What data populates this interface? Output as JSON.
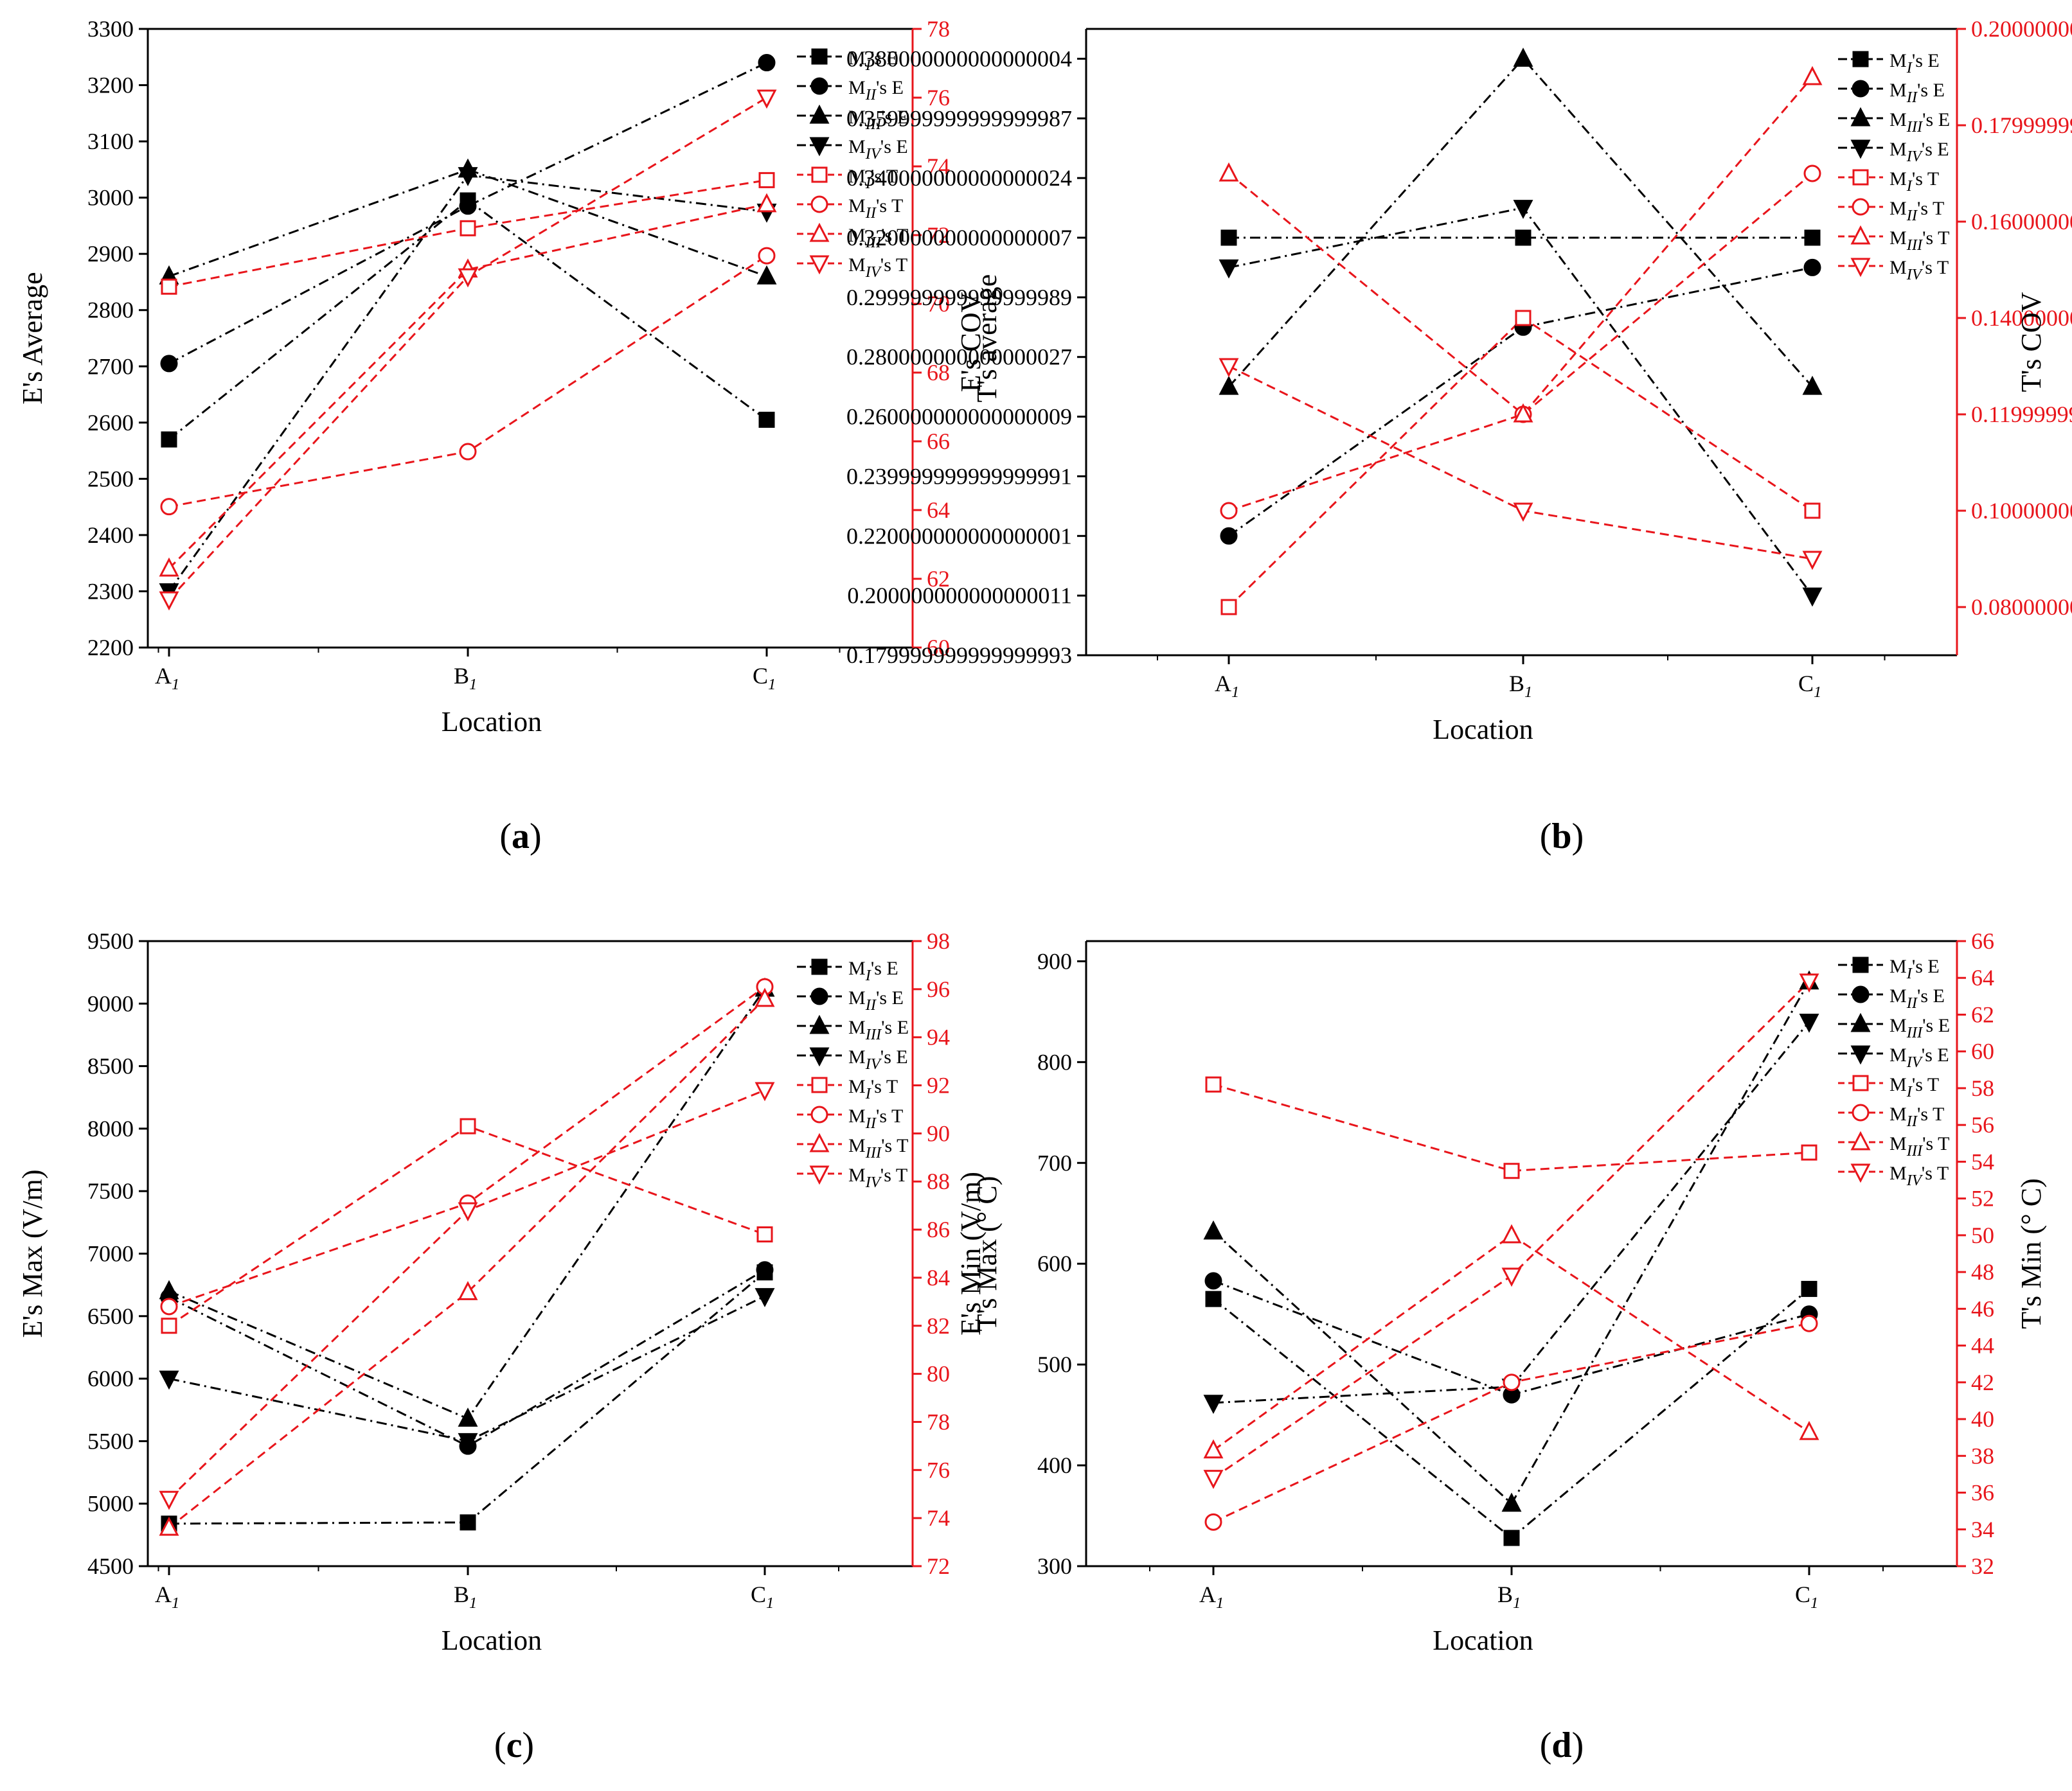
{
  "figure": {
    "colors": {
      "e_series": "#000000",
      "t_series": "#e8151b"
    },
    "legend_entries": [
      {
        "base": "M",
        "sub": "I",
        "suffix": "'s E"
      },
      {
        "base": "M",
        "sub": "II",
        "suffix": "'s E"
      },
      {
        "base": "M",
        "sub": "III",
        "suffix": "'s E"
      },
      {
        "base": "M",
        "sub": "IV",
        "suffix": "'s E"
      },
      {
        "base": "M",
        "sub": "I",
        "suffix": "'s T"
      },
      {
        "base": "M",
        "sub": "II",
        "suffix": "'s T"
      },
      {
        "base": "M",
        "sub": "III",
        "suffix": "'s T"
      },
      {
        "base": "M",
        "sub": "IV",
        "suffix": "'s T"
      }
    ],
    "categories": [
      {
        "base": "A",
        "sub": "1"
      },
      {
        "base": "B",
        "sub": "1"
      },
      {
        "base": "C",
        "sub": "1"
      }
    ]
  },
  "chart_data": [
    {
      "id": "a",
      "type": "line",
      "panel_label": "(a)",
      "xlabel": "Location",
      "ylabel_left": "E's Average",
      "ylabel_right": "T's average",
      "left_ylim": [
        2200,
        3300
      ],
      "left_ticks": [
        2200,
        2300,
        2400,
        2500,
        2600,
        2700,
        2800,
        2900,
        3000,
        3100,
        3200,
        3300
      ],
      "right_ylim": [
        60,
        78
      ],
      "right_ticks": [
        60,
        62,
        64,
        66,
        68,
        70,
        72,
        74,
        76,
        78
      ],
      "series_e": [
        {
          "name": "M_I's E",
          "values": [
            2570,
            2995,
            2605
          ]
        },
        {
          "name": "M_II's E",
          "values": [
            2705,
            2985,
            3240
          ]
        },
        {
          "name": "M_III's E",
          "values": [
            2860,
            3050,
            2860
          ]
        },
        {
          "name": "M_IV's E",
          "values": [
            2300,
            3040,
            2975
          ]
        }
      ],
      "series_t": [
        {
          "name": "M_I's T",
          "values": [
            70.5,
            72.2,
            73.6
          ]
        },
        {
          "name": "M_II's T",
          "values": [
            64.1,
            65.7,
            71.4
          ]
        },
        {
          "name": "M_III's T",
          "values": [
            62.3,
            71.0,
            72.9
          ]
        },
        {
          "name": "M_IV's T",
          "values": [
            61.4,
            70.8,
            76.0
          ]
        }
      ]
    },
    {
      "id": "b",
      "type": "line",
      "panel_label": "(b)",
      "xlabel": "Location",
      "ylabel_left": "E's COV",
      "ylabel_right": "T's COV",
      "left_ylim": [
        0.18,
        0.39
      ],
      "left_ticks": [
        0.18,
        0.2,
        0.22,
        0.24,
        0.26,
        0.28,
        0.3,
        0.32,
        0.34,
        0.36,
        0.38
      ],
      "right_ylim": [
        0.07,
        0.2
      ],
      "right_ticks": [
        0.08,
        0.1,
        0.12,
        0.14,
        0.16,
        0.18,
        0.2
      ],
      "series_e": [
        {
          "name": "M_I's E",
          "values": [
            0.32,
            0.32,
            0.32
          ]
        },
        {
          "name": "M_II's E",
          "values": [
            0.22,
            0.29,
            0.31
          ]
        },
        {
          "name": "M_III's E",
          "values": [
            0.27,
            0.38,
            0.27
          ]
        },
        {
          "name": "M_IV's E",
          "values": [
            0.31,
            0.33,
            0.2
          ]
        }
      ],
      "series_t": [
        {
          "name": "M_I's T",
          "values": [
            0.08,
            0.14,
            0.1
          ]
        },
        {
          "name": "M_II's T",
          "values": [
            0.1,
            0.12,
            0.17
          ]
        },
        {
          "name": "M_III's T",
          "values": [
            0.17,
            0.12,
            0.19
          ]
        },
        {
          "name": "M_IV's T",
          "values": [
            0.13,
            0.1,
            0.09
          ]
        }
      ]
    },
    {
      "id": "c",
      "type": "line",
      "panel_label": "(c)",
      "xlabel": "Location",
      "ylabel_left": "E's Max (V/m)",
      "ylabel_right": "T's Max (° C)",
      "left_ylim": [
        4500,
        9500
      ],
      "left_ticks": [
        4500,
        5000,
        5500,
        6000,
        6500,
        7000,
        7500,
        8000,
        8500,
        9000,
        9500
      ],
      "right_ylim": [
        72,
        98
      ],
      "right_ticks": [
        72,
        74,
        76,
        78,
        80,
        82,
        84,
        86,
        88,
        90,
        92,
        94,
        96,
        98
      ],
      "series_e": [
        {
          "name": "M_I's E",
          "values": [
            4840,
            4850,
            6850
          ]
        },
        {
          "name": "M_II's E",
          "values": [
            6650,
            5460,
            6870
          ]
        },
        {
          "name": "M_III's E",
          "values": [
            6700,
            5680,
            9120
          ]
        },
        {
          "name": "M_IV's E",
          "values": [
            6000,
            5500,
            6660
          ]
        }
      ],
      "series_t": [
        {
          "name": "M_I's T",
          "values": [
            82.0,
            90.3,
            85.8
          ]
        },
        {
          "name": "M_II's T",
          "values": [
            82.8,
            87.1,
            96.1
          ]
        },
        {
          "name": "M_III's T",
          "values": [
            73.6,
            83.4,
            95.6
          ]
        },
        {
          "name": "M_IV's T",
          "values": [
            74.8,
            86.8,
            91.8
          ]
        }
      ]
    },
    {
      "id": "d",
      "type": "line",
      "panel_label": "(d)",
      "xlabel": "Location",
      "ylabel_left": "E's Min (V/m)",
      "ylabel_right": "T's Min (° C)",
      "left_ylim": [
        300,
        920
      ],
      "left_ticks": [
        300,
        400,
        500,
        600,
        700,
        800,
        900
      ],
      "right_ylim": [
        32,
        66
      ],
      "right_ticks": [
        32,
        34,
        36,
        38,
        40,
        42,
        44,
        46,
        48,
        50,
        52,
        54,
        56,
        58,
        60,
        62,
        64,
        66
      ],
      "series_e": [
        {
          "name": "M_I's E",
          "values": [
            565,
            328,
            575
          ]
        },
        {
          "name": "M_II's E",
          "values": [
            583,
            470,
            550
          ]
        },
        {
          "name": "M_III's E",
          "values": [
            632,
            362,
            880
          ]
        },
        {
          "name": "M_IV's E",
          "values": [
            462,
            478,
            840
          ]
        }
      ],
      "series_t": [
        {
          "name": "M_I's T",
          "values": [
            58.2,
            53.5,
            54.5
          ]
        },
        {
          "name": "M_II's T",
          "values": [
            34.4,
            42.0,
            45.2
          ]
        },
        {
          "name": "M_III's T",
          "values": [
            38.3,
            50.0,
            39.3
          ]
        },
        {
          "name": "M_IV's T",
          "values": [
            36.8,
            47.8,
            63.8
          ]
        }
      ]
    }
  ]
}
